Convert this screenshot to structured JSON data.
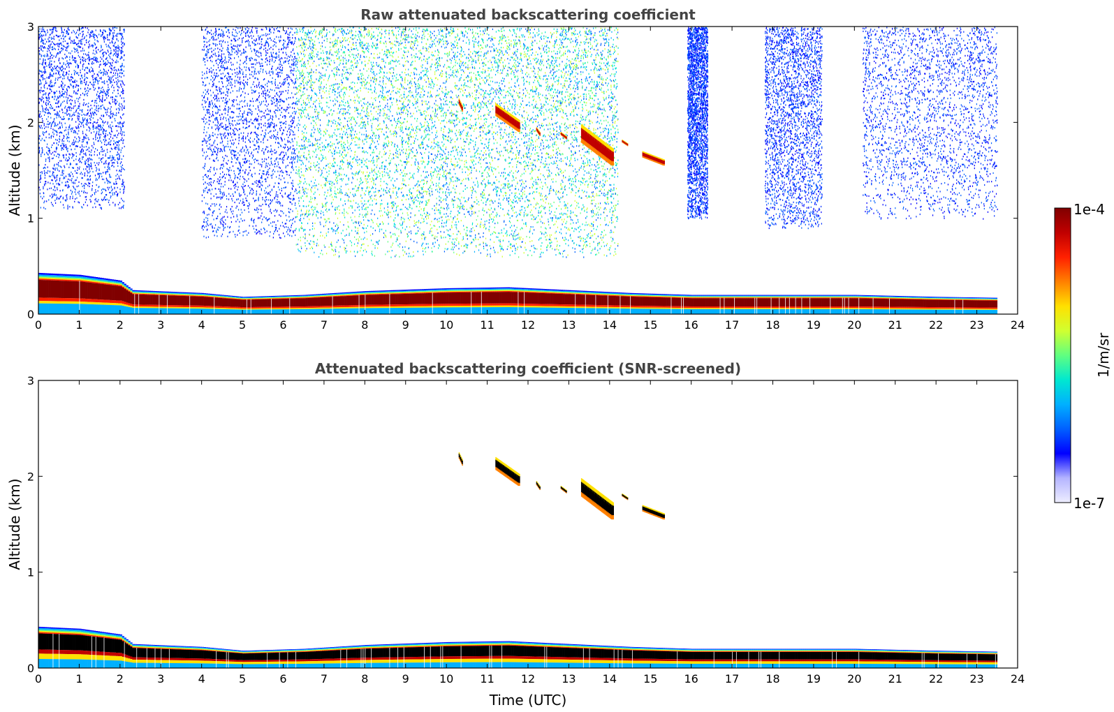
{
  "chart_data": [
    {
      "type": "heatmap",
      "title": "Raw attenuated backscattering coefficient",
      "xlabel": "",
      "ylabel": "Altitude (km)",
      "xlim": [
        0,
        24
      ],
      "ylim": [
        0,
        3
      ],
      "x_ticks": [
        "0",
        "1",
        "2",
        "3",
        "4",
        "5",
        "6",
        "7",
        "8",
        "9",
        "10",
        "11",
        "12",
        "13",
        "14",
        "15",
        "16",
        "17",
        "18",
        "19",
        "20",
        "21",
        "22",
        "23",
        "24"
      ],
      "y_ticks": [
        "0",
        "1",
        "2",
        "3"
      ],
      "data_end_hour": 23.5,
      "boundary_layer_top_km": [
        [
          0,
          0.43
        ],
        [
          1,
          0.41
        ],
        [
          2,
          0.35
        ],
        [
          2.3,
          0.25
        ],
        [
          4,
          0.22
        ],
        [
          5,
          0.18
        ],
        [
          6.5,
          0.2
        ],
        [
          8,
          0.24
        ],
        [
          10,
          0.27
        ],
        [
          11.5,
          0.28
        ],
        [
          13,
          0.25
        ],
        [
          14.5,
          0.22
        ],
        [
          16,
          0.2
        ],
        [
          18,
          0.2
        ],
        [
          20,
          0.2
        ],
        [
          22,
          0.18
        ],
        [
          23.5,
          0.17
        ]
      ],
      "cloud_features": [
        {
          "t_start": 10.3,
          "t_end": 10.4,
          "alt_km": [
            2.1,
            2.25
          ]
        },
        {
          "t_start": 11.2,
          "t_end": 11.8,
          "alt_km": [
            1.9,
            2.2
          ]
        },
        {
          "t_start": 12.2,
          "t_end": 12.3,
          "alt_km": [
            1.85,
            1.95
          ]
        },
        {
          "t_start": 12.8,
          "t_end": 12.95,
          "alt_km": [
            1.82,
            1.9
          ]
        },
        {
          "t_start": 13.3,
          "t_end": 14.1,
          "alt_km": [
            1.55,
            1.98
          ]
        },
        {
          "t_start": 14.3,
          "t_end": 14.45,
          "alt_km": [
            1.75,
            1.82
          ]
        },
        {
          "t_start": 14.8,
          "t_end": 15.35,
          "alt_km": [
            1.55,
            1.7
          ]
        }
      ],
      "noise_regions": [
        {
          "t_start": 0,
          "t_end": 2.1,
          "alt_km": [
            1.1,
            3
          ],
          "level": "low"
        },
        {
          "t_start": 4.0,
          "t_end": 6.3,
          "alt_km": [
            0.8,
            3
          ],
          "level": "low"
        },
        {
          "t_start": 6.3,
          "t_end": 14.2,
          "alt_km": [
            0.6,
            3
          ],
          "level": "high"
        },
        {
          "t_start": 15.9,
          "t_end": 16.4,
          "alt_km": [
            1.0,
            3
          ],
          "level": "low"
        },
        {
          "t_start": 17.8,
          "t_end": 19.2,
          "alt_km": [
            0.9,
            3
          ],
          "level": "low"
        },
        {
          "t_start": 20.2,
          "t_end": 23.5,
          "alt_km": [
            1.0,
            3
          ],
          "level": "low"
        }
      ]
    },
    {
      "type": "heatmap",
      "title": "Attenuated backscattering coefficient (SNR-screened)",
      "xlabel": "Time (UTC)",
      "ylabel": "Altitude (km)",
      "xlim": [
        0,
        24
      ],
      "ylim": [
        0,
        3
      ],
      "x_ticks": [
        "0",
        "1",
        "2",
        "3",
        "4",
        "5",
        "6",
        "7",
        "8",
        "9",
        "10",
        "11",
        "12",
        "13",
        "14",
        "15",
        "16",
        "17",
        "18",
        "19",
        "20",
        "21",
        "22",
        "23",
        "24"
      ],
      "y_ticks": [
        "0",
        "1",
        "2",
        "3"
      ],
      "data_end_hour": 23.5,
      "saturated_color": "#000000"
    }
  ],
  "colorbar": {
    "label": "1/m/sr",
    "max_label": "1e-4",
    "min_label": "1e-7",
    "scale": "log",
    "colors": [
      "#eeeeff",
      "#b4b4ff",
      "#0000ff",
      "#0060ff",
      "#00b0ff",
      "#00e8d0",
      "#60ff80",
      "#d0ff30",
      "#ffe000",
      "#ff8000",
      "#ff2000",
      "#c00000",
      "#800000"
    ]
  }
}
